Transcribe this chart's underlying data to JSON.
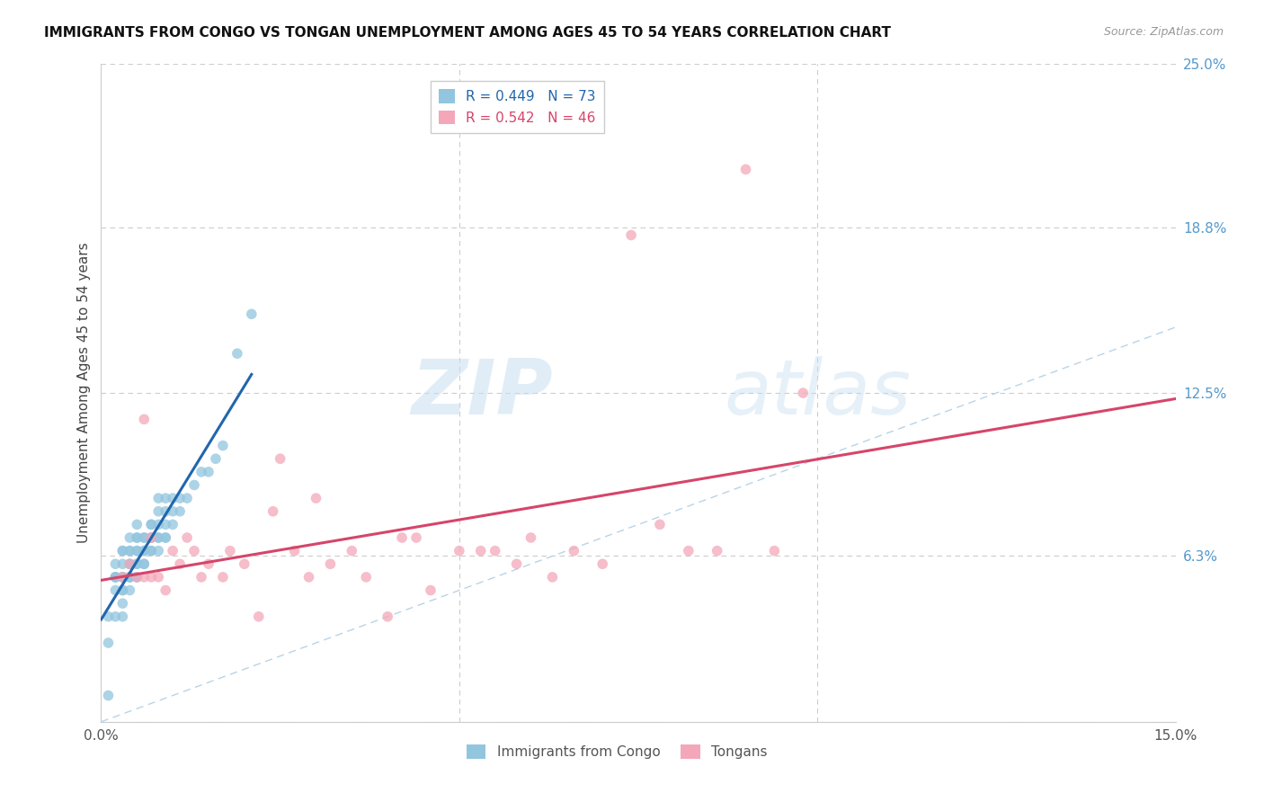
{
  "title": "IMMIGRANTS FROM CONGO VS TONGAN UNEMPLOYMENT AMONG AGES 45 TO 54 YEARS CORRELATION CHART",
  "source": "Source: ZipAtlas.com",
  "ylabel": "Unemployment Among Ages 45 to 54 years",
  "xlim": [
    0.0,
    0.15
  ],
  "ylim": [
    0.0,
    0.25
  ],
  "ytick_right_labels": [
    "25.0%",
    "18.8%",
    "12.5%",
    "6.3%",
    ""
  ],
  "ytick_right_values": [
    0.25,
    0.188,
    0.125,
    0.063,
    0.0
  ],
  "legend_r1": "R = 0.449   N = 73",
  "legend_r2": "R = 0.542   N = 46",
  "legend_label1": "Immigrants from Congo",
  "legend_label2": "Tongans",
  "color_congo": "#92c5de",
  "color_tonga": "#f4a7b9",
  "color_line_congo": "#2166ac",
  "color_line_tonga": "#d6456a",
  "color_line_diag": "#b8d4e8",
  "background_color": "#ffffff",
  "watermark_zip": "ZIP",
  "watermark_atlas": "atlas",
  "congo_x": [
    0.001,
    0.001,
    0.001,
    0.002,
    0.002,
    0.002,
    0.002,
    0.002,
    0.002,
    0.003,
    0.003,
    0.003,
    0.003,
    0.003,
    0.003,
    0.003,
    0.003,
    0.003,
    0.003,
    0.004,
    0.004,
    0.004,
    0.004,
    0.004,
    0.004,
    0.004,
    0.004,
    0.004,
    0.005,
    0.005,
    0.005,
    0.005,
    0.005,
    0.005,
    0.005,
    0.005,
    0.005,
    0.006,
    0.006,
    0.006,
    0.006,
    0.006,
    0.006,
    0.007,
    0.007,
    0.007,
    0.007,
    0.007,
    0.007,
    0.008,
    0.008,
    0.008,
    0.008,
    0.008,
    0.008,
    0.009,
    0.009,
    0.009,
    0.009,
    0.009,
    0.01,
    0.01,
    0.01,
    0.011,
    0.011,
    0.012,
    0.013,
    0.014,
    0.015,
    0.016,
    0.017,
    0.019,
    0.021
  ],
  "congo_y": [
    0.01,
    0.03,
    0.04,
    0.04,
    0.05,
    0.055,
    0.055,
    0.055,
    0.06,
    0.04,
    0.045,
    0.05,
    0.05,
    0.055,
    0.055,
    0.055,
    0.06,
    0.065,
    0.065,
    0.05,
    0.055,
    0.055,
    0.055,
    0.06,
    0.06,
    0.065,
    0.065,
    0.07,
    0.055,
    0.055,
    0.06,
    0.06,
    0.065,
    0.065,
    0.07,
    0.07,
    0.075,
    0.06,
    0.06,
    0.065,
    0.065,
    0.07,
    0.07,
    0.065,
    0.065,
    0.07,
    0.07,
    0.075,
    0.075,
    0.065,
    0.07,
    0.07,
    0.075,
    0.08,
    0.085,
    0.07,
    0.07,
    0.075,
    0.08,
    0.085,
    0.075,
    0.08,
    0.085,
    0.08,
    0.085,
    0.085,
    0.09,
    0.095,
    0.095,
    0.1,
    0.105,
    0.14,
    0.155
  ],
  "tonga_x": [
    0.003,
    0.004,
    0.005,
    0.006,
    0.006,
    0.007,
    0.007,
    0.008,
    0.009,
    0.01,
    0.011,
    0.012,
    0.013,
    0.014,
    0.015,
    0.017,
    0.018,
    0.02,
    0.022,
    0.024,
    0.025,
    0.027,
    0.029,
    0.03,
    0.032,
    0.035,
    0.037,
    0.04,
    0.042,
    0.044,
    0.046,
    0.05,
    0.053,
    0.055,
    0.058,
    0.06,
    0.063,
    0.066,
    0.07,
    0.074,
    0.078,
    0.082,
    0.086,
    0.09,
    0.094,
    0.098
  ],
  "tonga_y": [
    0.055,
    0.06,
    0.055,
    0.055,
    0.115,
    0.055,
    0.07,
    0.055,
    0.05,
    0.065,
    0.06,
    0.07,
    0.065,
    0.055,
    0.06,
    0.055,
    0.065,
    0.06,
    0.04,
    0.08,
    0.1,
    0.065,
    0.055,
    0.085,
    0.06,
    0.065,
    0.055,
    0.04,
    0.07,
    0.07,
    0.05,
    0.065,
    0.065,
    0.065,
    0.06,
    0.07,
    0.055,
    0.065,
    0.06,
    0.185,
    0.075,
    0.065,
    0.065,
    0.21,
    0.065,
    0.125
  ]
}
